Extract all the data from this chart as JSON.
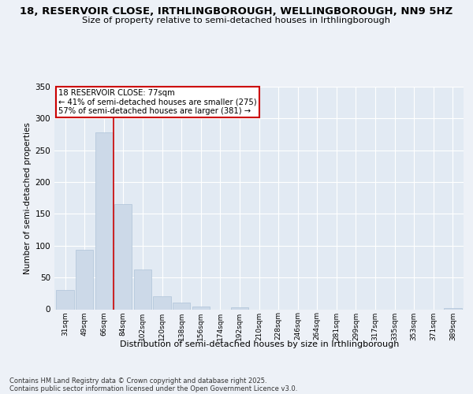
{
  "title_line1": "18, RESERVOIR CLOSE, IRTHLINGBOROUGH, WELLINGBOROUGH, NN9 5HZ",
  "title_line2": "Size of property relative to semi-detached houses in Irthlingborough",
  "xlabel": "Distribution of semi-detached houses by size in Irthlingborough",
  "ylabel": "Number of semi-detached properties",
  "categories": [
    "31sqm",
    "49sqm",
    "66sqm",
    "84sqm",
    "102sqm",
    "120sqm",
    "138sqm",
    "156sqm",
    "174sqm",
    "192sqm",
    "210sqm",
    "228sqm",
    "246sqm",
    "264sqm",
    "281sqm",
    "299sqm",
    "317sqm",
    "335sqm",
    "353sqm",
    "371sqm",
    "389sqm"
  ],
  "values": [
    30,
    93,
    278,
    165,
    62,
    21,
    10,
    4,
    0,
    3,
    0,
    0,
    0,
    0,
    0,
    0,
    0,
    0,
    0,
    0,
    2
  ],
  "bar_color": "#ccd9e8",
  "bar_edge_color": "#afc4d8",
  "property_line_x": 2.5,
  "annotation_title": "18 RESERVOIR CLOSE: 77sqm",
  "annotation_line1": "← 41% of semi-detached houses are smaller (275)",
  "annotation_line2": "57% of semi-detached houses are larger (381) →",
  "annotation_box_color": "#cc0000",
  "ylim": [
    0,
    350
  ],
  "yticks": [
    0,
    50,
    100,
    150,
    200,
    250,
    300,
    350
  ],
  "footer_line1": "Contains HM Land Registry data © Crown copyright and database right 2025.",
  "footer_line2": "Contains public sector information licensed under the Open Government Licence v3.0.",
  "background_color": "#edf1f7",
  "plot_background": "#e2eaf3"
}
